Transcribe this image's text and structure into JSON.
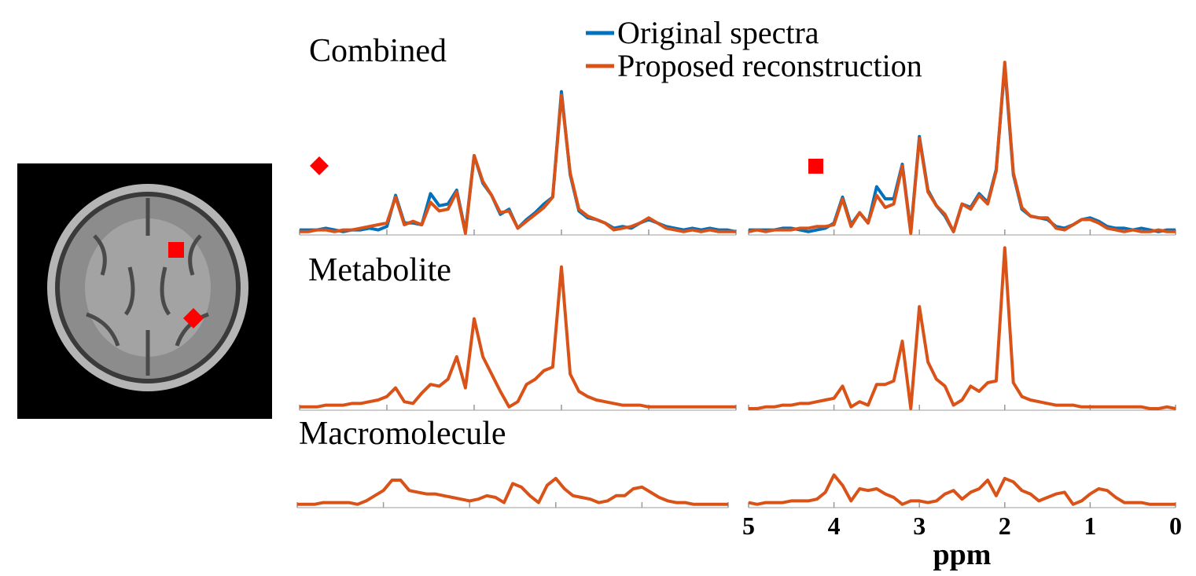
{
  "chart_data": [
    {
      "type": "line",
      "title": "Combined",
      "xlim": [
        5,
        0
      ],
      "xticks": [
        5,
        4,
        3,
        2,
        1,
        0
      ],
      "ylim": [
        0,
        1
      ],
      "x": [
        5,
        4.9,
        4.8,
        4.7,
        4.6,
        4.5,
        4.4,
        4.3,
        4.2,
        4.1,
        4,
        3.9,
        3.8,
        3.7,
        3.6,
        3.5,
        3.4,
        3.3,
        3.2,
        3.1,
        3,
        2.9,
        2.8,
        2.7,
        2.6,
        2.5,
        2.4,
        2.3,
        2.2,
        2.1,
        2,
        1.9,
        1.8,
        1.7,
        1.6,
        1.5,
        1.4,
        1.3,
        1.2,
        1.1,
        1,
        0.9,
        0.8,
        0.7,
        0.6,
        0.5,
        0.4,
        0.3,
        0.2,
        0.1,
        0
      ],
      "series": [
        {
          "name": "Original spectra",
          "color": "#0072bd",
          "values": [
            0.02,
            0.02,
            0.02,
            0.03,
            0.02,
            0.01,
            0.02,
            0.02,
            0.03,
            0.02,
            0.04,
            0.22,
            0.06,
            0.06,
            0.05,
            0.23,
            0.16,
            0.17,
            0.25,
            0.01,
            0.45,
            0.29,
            0.22,
            0.11,
            0.14,
            0.03,
            0.08,
            0.12,
            0.17,
            0.21,
            0.82,
            0.34,
            0.13,
            0.09,
            0.08,
            0.06,
            0.03,
            0.04,
            0.03,
            0.06,
            0.08,
            0.06,
            0.04,
            0.03,
            0.02,
            0.03,
            0.02,
            0.03,
            0.02,
            0.02,
            0.01
          ]
        },
        {
          "name": "Proposed reconstruction",
          "color": "#d95319",
          "values": [
            0.01,
            0.01,
            0.02,
            0.02,
            0.01,
            0.02,
            0.02,
            0.03,
            0.04,
            0.05,
            0.06,
            0.21,
            0.05,
            0.07,
            0.05,
            0.18,
            0.13,
            0.14,
            0.24,
            0.0,
            0.45,
            0.3,
            0.22,
            0.12,
            0.13,
            0.03,
            0.07,
            0.11,
            0.15,
            0.21,
            0.8,
            0.35,
            0.14,
            0.1,
            0.08,
            0.06,
            0.02,
            0.03,
            0.04,
            0.06,
            0.09,
            0.06,
            0.03,
            0.02,
            0.01,
            0.02,
            0.01,
            0.02,
            0.01,
            0.01,
            0.01
          ]
        }
      ]
    },
    {
      "type": "line",
      "xlim": [
        5,
        0
      ],
      "xticks": [
        5,
        4,
        3,
        2,
        1,
        0
      ],
      "ylim": [
        0,
        1
      ],
      "x": [
        5,
        4.9,
        4.8,
        4.7,
        4.6,
        4.5,
        4.4,
        4.3,
        4.2,
        4.1,
        4,
        3.9,
        3.8,
        3.7,
        3.6,
        3.5,
        3.4,
        3.3,
        3.2,
        3.1,
        3,
        2.9,
        2.8,
        2.7,
        2.6,
        2.5,
        2.4,
        2.3,
        2.2,
        2.1,
        2,
        1.9,
        1.8,
        1.7,
        1.6,
        1.5,
        1.4,
        1.3,
        1.2,
        1.1,
        1,
        0.9,
        0.8,
        0.7,
        0.6,
        0.5,
        0.4,
        0.3,
        0.2,
        0.1,
        0
      ],
      "series": [
        {
          "color": "#0072bd",
          "values": [
            0.02,
            0.02,
            0.02,
            0.02,
            0.03,
            0.03,
            0.02,
            0.01,
            0.02,
            0.03,
            0.06,
            0.21,
            0.05,
            0.12,
            0.06,
            0.27,
            0.2,
            0.2,
            0.4,
            0.01,
            0.56,
            0.25,
            0.16,
            0.1,
            0.01,
            0.17,
            0.15,
            0.23,
            0.18,
            0.37,
            0.97,
            0.34,
            0.14,
            0.1,
            0.09,
            0.08,
            0.04,
            0.03,
            0.05,
            0.08,
            0.09,
            0.07,
            0.04,
            0.03,
            0.03,
            0.02,
            0.03,
            0.02,
            0.01,
            0.02,
            0.02
          ]
        },
        {
          "color": "#d95319",
          "values": [
            0.01,
            0.02,
            0.01,
            0.02,
            0.02,
            0.02,
            0.03,
            0.03,
            0.04,
            0.04,
            0.05,
            0.2,
            0.04,
            0.12,
            0.06,
            0.22,
            0.15,
            0.17,
            0.39,
            0.0,
            0.55,
            0.24,
            0.16,
            0.11,
            0.01,
            0.17,
            0.14,
            0.22,
            0.17,
            0.36,
            0.99,
            0.35,
            0.15,
            0.1,
            0.09,
            0.09,
            0.03,
            0.02,
            0.05,
            0.08,
            0.08,
            0.06,
            0.03,
            0.02,
            0.01,
            0.02,
            0.01,
            0.01,
            0.02,
            0.01,
            0.01
          ]
        }
      ]
    },
    {
      "type": "line",
      "title": "Metabolite",
      "xlim": [
        5,
        0
      ],
      "xticks": [
        5,
        4,
        3,
        2,
        1,
        0
      ],
      "ylim": [
        0,
        1
      ],
      "x": [
        5,
        4.9,
        4.8,
        4.7,
        4.6,
        4.5,
        4.4,
        4.3,
        4.2,
        4.1,
        4,
        3.9,
        3.8,
        3.7,
        3.6,
        3.5,
        3.4,
        3.3,
        3.2,
        3.1,
        3,
        2.9,
        2.8,
        2.7,
        2.6,
        2.5,
        2.4,
        2.3,
        2.2,
        2.1,
        2,
        1.9,
        1.8,
        1.7,
        1.6,
        1.5,
        1.4,
        1.3,
        1.2,
        1.1,
        1,
        0.9,
        0.8,
        0.7,
        0.6,
        0.5,
        0.4,
        0.3,
        0.2,
        0.1,
        0
      ],
      "series": [
        {
          "color": "#d95319",
          "values": [
            0.01,
            0.01,
            0.01,
            0.02,
            0.02,
            0.02,
            0.03,
            0.03,
            0.04,
            0.05,
            0.07,
            0.12,
            0.04,
            0.03,
            0.09,
            0.14,
            0.13,
            0.17,
            0.3,
            0.12,
            0.52,
            0.3,
            0.2,
            0.1,
            0.01,
            0.04,
            0.14,
            0.17,
            0.22,
            0.24,
            0.82,
            0.2,
            0.1,
            0.07,
            0.05,
            0.04,
            0.03,
            0.02,
            0.02,
            0.02,
            0.01,
            0.01,
            0.01,
            0.01,
            0.01,
            0.01,
            0.01,
            0.01,
            0.01,
            0.01,
            0.01
          ]
        }
      ]
    },
    {
      "type": "line",
      "xlim": [
        5,
        0
      ],
      "xticks": [
        5,
        4,
        3,
        2,
        1,
        0
      ],
      "ylim": [
        0,
        1
      ],
      "x": [
        5,
        4.9,
        4.8,
        4.7,
        4.6,
        4.5,
        4.4,
        4.3,
        4.2,
        4.1,
        4,
        3.9,
        3.8,
        3.7,
        3.6,
        3.5,
        3.4,
        3.3,
        3.2,
        3.1,
        3,
        2.9,
        2.8,
        2.7,
        2.6,
        2.5,
        2.4,
        2.3,
        2.2,
        2.1,
        2,
        1.9,
        1.8,
        1.7,
        1.6,
        1.5,
        1.4,
        1.3,
        1.2,
        1.1,
        1,
        0.9,
        0.8,
        0.7,
        0.6,
        0.5,
        0.4,
        0.3,
        0.2,
        0.1,
        0
      ],
      "series": [
        {
          "color": "#d95319",
          "values": [
            0.0,
            0.0,
            0.01,
            0.01,
            0.02,
            0.02,
            0.03,
            0.03,
            0.04,
            0.05,
            0.06,
            0.13,
            0.01,
            0.04,
            0.02,
            0.14,
            0.14,
            0.16,
            0.39,
            0.0,
            0.59,
            0.27,
            0.17,
            0.13,
            0.02,
            0.05,
            0.13,
            0.1,
            0.15,
            0.16,
            0.93,
            0.15,
            0.07,
            0.05,
            0.04,
            0.03,
            0.02,
            0.02,
            0.02,
            0.01,
            0.01,
            0.01,
            0.01,
            0.01,
            0.01,
            0.01,
            0.01,
            0.0,
            0.0,
            0.01,
            0.0
          ]
        }
      ]
    },
    {
      "type": "line",
      "title": "Macromolecule",
      "xlim": [
        5,
        0
      ],
      "xticks": [
        5,
        4,
        3,
        2,
        1,
        0
      ],
      "ylim": [
        0,
        1
      ],
      "x": [
        5,
        4.9,
        4.8,
        4.7,
        4.6,
        4.5,
        4.4,
        4.3,
        4.2,
        4.1,
        4,
        3.9,
        3.8,
        3.7,
        3.6,
        3.5,
        3.4,
        3.3,
        3.2,
        3.1,
        3,
        2.9,
        2.8,
        2.7,
        2.6,
        2.5,
        2.4,
        2.3,
        2.2,
        2.1,
        2,
        1.9,
        1.8,
        1.7,
        1.6,
        1.5,
        1.4,
        1.3,
        1.2,
        1.1,
        1,
        0.9,
        0.8,
        0.7,
        0.6,
        0.5,
        0.4,
        0.3,
        0.2,
        0.1,
        0
      ],
      "series": [
        {
          "color": "#d95319",
          "values": [
            0.01,
            0.01,
            0.01,
            0.02,
            0.02,
            0.02,
            0.02,
            0.01,
            0.03,
            0.06,
            0.09,
            0.15,
            0.15,
            0.09,
            0.08,
            0.07,
            0.07,
            0.06,
            0.05,
            0.04,
            0.03,
            0.04,
            0.06,
            0.05,
            0.02,
            0.13,
            0.11,
            0.06,
            0.02,
            0.12,
            0.16,
            0.1,
            0.06,
            0.05,
            0.04,
            0.02,
            0.03,
            0.06,
            0.06,
            0.1,
            0.11,
            0.08,
            0.05,
            0.03,
            0.02,
            0.02,
            0.01,
            0.01,
            0.01,
            0.01,
            0.01
          ]
        }
      ]
    },
    {
      "type": "line",
      "xlabel": "ppm",
      "tick_labels": true,
      "xlim": [
        5,
        0
      ],
      "xticks": [
        5,
        4,
        3,
        2,
        1,
        0
      ],
      "ylim": [
        0,
        1
      ],
      "x": [
        5,
        4.9,
        4.8,
        4.7,
        4.6,
        4.5,
        4.4,
        4.3,
        4.2,
        4.1,
        4,
        3.9,
        3.8,
        3.7,
        3.6,
        3.5,
        3.4,
        3.3,
        3.2,
        3.1,
        3,
        2.9,
        2.8,
        2.7,
        2.6,
        2.5,
        2.4,
        2.3,
        2.2,
        2.1,
        2,
        1.9,
        1.8,
        1.7,
        1.6,
        1.5,
        1.4,
        1.3,
        1.2,
        1.1,
        1,
        0.9,
        0.8,
        0.7,
        0.6,
        0.5,
        0.4,
        0.3,
        0.2,
        0.1,
        0
      ],
      "series": [
        {
          "color": "#d95319",
          "values": [
            0.02,
            0.01,
            0.02,
            0.02,
            0.02,
            0.03,
            0.03,
            0.03,
            0.04,
            0.08,
            0.18,
            0.12,
            0.03,
            0.1,
            0.09,
            0.1,
            0.07,
            0.05,
            0.01,
            0.03,
            0.03,
            0.02,
            0.03,
            0.07,
            0.09,
            0.04,
            0.08,
            0.1,
            0.15,
            0.06,
            0.16,
            0.14,
            0.09,
            0.07,
            0.03,
            0.05,
            0.07,
            0.08,
            0.01,
            0.03,
            0.07,
            0.1,
            0.09,
            0.05,
            0.02,
            0.02,
            0.02,
            0.01,
            0.01,
            0.01,
            0.01
          ]
        }
      ]
    }
  ]
}
